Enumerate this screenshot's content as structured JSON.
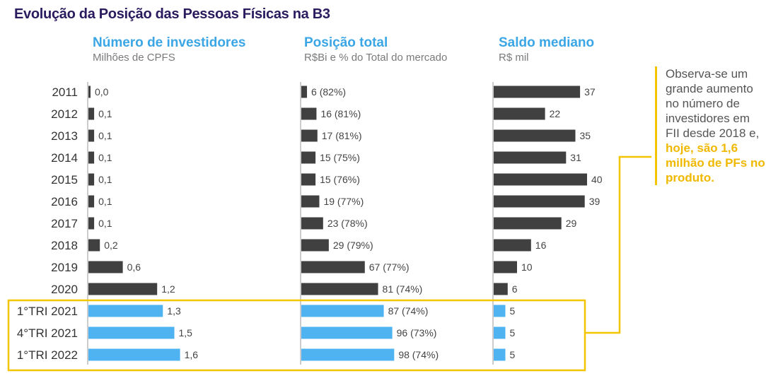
{
  "title": "Evolução da Posição das Pessoas Físicas na B3",
  "colors": {
    "bar_dark": "#404040",
    "bar_light": "#4fb3f2",
    "accent_title": "#3aa6e6",
    "highlight": "#f2c500",
    "title_color": "#2a1a5e"
  },
  "note": {
    "text": "Observa-se um grande aumento no número de investidores em FII desde 2018 e,",
    "highlight": "hoje, são 1,6 milhão de PFs no produto."
  },
  "chart_data": {
    "type": "bar",
    "orientation": "horizontal",
    "categories": [
      "2011",
      "2012",
      "2013",
      "2014",
      "2015",
      "2016",
      "2017",
      "2018",
      "2019",
      "2020",
      "1°TRI 2021",
      "4°TRI 2021",
      "1°TRI 2022"
    ],
    "highlighted_categories": [
      "1°TRI 2021",
      "4°TRI 2021",
      "1°TRI 2022"
    ],
    "panels": [
      {
        "title": "Número de investidores",
        "subtitle": "Milhões de CPFS",
        "values": [
          0.03,
          0.1,
          0.1,
          0.1,
          0.1,
          0.1,
          0.1,
          0.2,
          0.6,
          1.2,
          1.3,
          1.5,
          1.6
        ],
        "labels": [
          "0,0",
          "0,1",
          "0,1",
          "0,1",
          "0,1",
          "0,1",
          "0,1",
          "0,2",
          "0,6",
          "1,2",
          "1,3",
          "1,5",
          "1,6"
        ]
      },
      {
        "title": "Posição total",
        "subtitle": "R$Bi e % do Total do mercado",
        "values": [
          6,
          16,
          17,
          15,
          15,
          19,
          23,
          29,
          67,
          81,
          87,
          96,
          98
        ],
        "labels": [
          "6 (82%)",
          "16 (81%)",
          "17 (81%)",
          "15 (75%)",
          "15 (76%)",
          "19 (77%)",
          "23 (78%)",
          "29 (79%)",
          "67 (77%)",
          "81 (74%)",
          "87 (74%)",
          "96 (73%)",
          "98 (74%)"
        ]
      },
      {
        "title": "Saldo mediano",
        "subtitle": "R$ mil",
        "values": [
          37,
          22,
          35,
          31,
          40,
          39,
          29,
          16,
          10,
          6,
          5,
          5,
          5
        ],
        "labels": [
          "37",
          "22",
          "35",
          "31",
          "40",
          "39",
          "29",
          "16",
          "10",
          "6",
          "5",
          "5",
          "5"
        ]
      }
    ]
  }
}
